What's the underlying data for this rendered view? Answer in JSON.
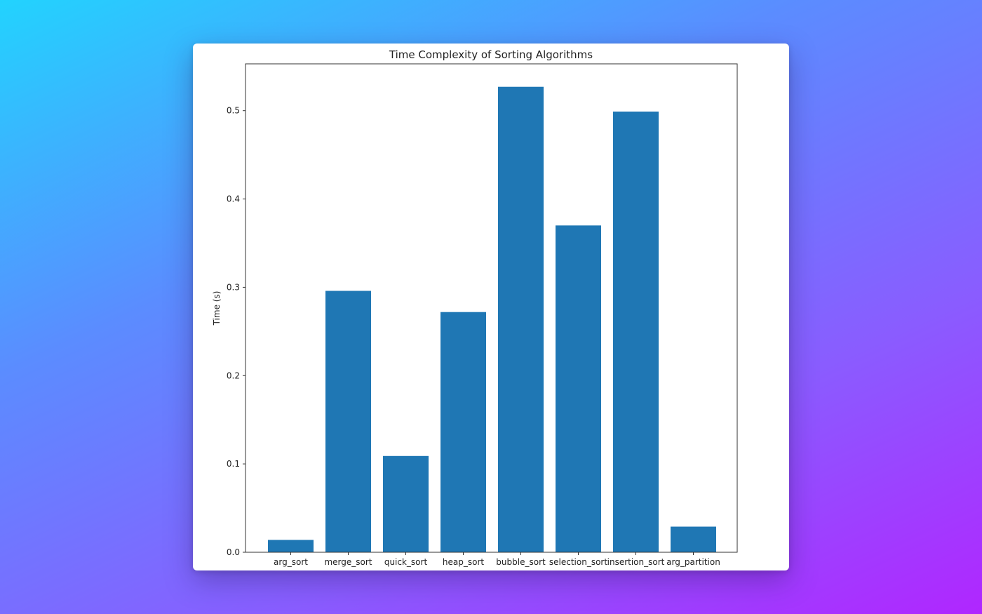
{
  "chart_data": {
    "type": "bar",
    "title": "Time Complexity of Sorting Algorithms",
    "xlabel": "",
    "ylabel": "Time (s)",
    "categories": [
      "arg_sort",
      "merge_sort",
      "quick_sort",
      "heap_sort",
      "bubble_sort",
      "selection_sort",
      "insertion_sort",
      "arg_partition"
    ],
    "values": [
      0.014,
      0.296,
      0.109,
      0.272,
      0.527,
      0.37,
      0.499,
      0.029
    ],
    "ylim": [
      0,
      0.553
    ],
    "yticks": [
      "0.0",
      "0.1",
      "0.2",
      "0.3",
      "0.4",
      "0.5"
    ],
    "grid": false,
    "legend": "none",
    "bar_color": "#1f77b4"
  },
  "colors": {
    "background_start": "#22d3fe",
    "background_end": "#b026ff",
    "panel": "#ffffff",
    "bar": "#1f77b4"
  }
}
